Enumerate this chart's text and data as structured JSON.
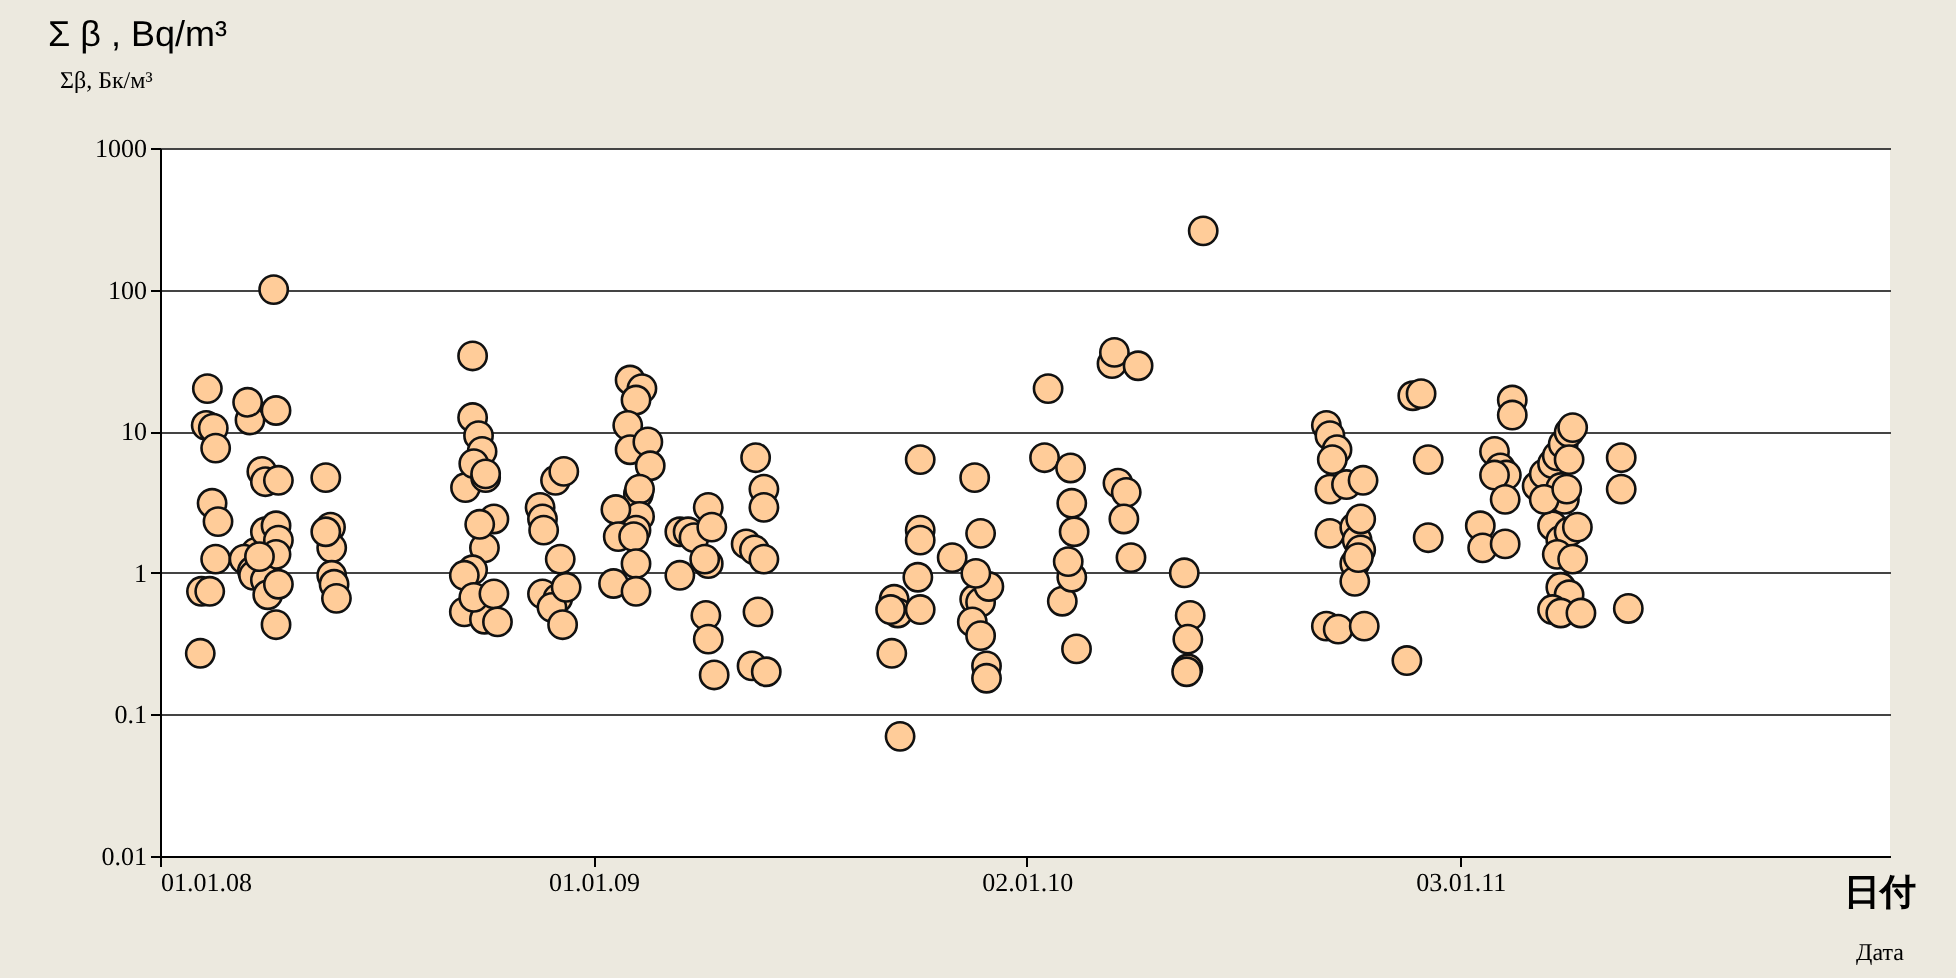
{
  "chart_data": {
    "type": "scatter",
    "ylabel": "Σ β , Bq/m³",
    "xlabel": "日付",
    "annotations": [
      "Σβ, Бк/м³",
      "Дата"
    ],
    "log": "y",
    "grid": "y",
    "marker": "circle",
    "ylim": [
      0.01,
      1000
    ],
    "yticks": [
      0.01,
      0.1,
      1,
      10,
      100,
      1000
    ],
    "xlim": [
      "2008-01-01",
      "2012-01-01"
    ],
    "xticks": [
      {
        "value": "2008-01-01",
        "label": "01.01.08"
      },
      {
        "value": "2009-01-01",
        "label": "01.01.09"
      },
      {
        "value": "2010-01-02",
        "label": "02.01.10"
      },
      {
        "value": "2011-01-03",
        "label": "03.01.11"
      }
    ],
    "series": [
      {
        "color": "#ffcc99",
        "x": [
          "2008-02-04",
          "2008-02-05",
          "2008-02-12",
          "2008-02-09",
          "2008-02-15",
          "2008-02-10",
          "2008-02-17",
          "2008-02-14",
          "2008-02-19",
          "2008-02-17",
          "2008-03-17",
          "2008-03-15",
          "2008-04-08",
          "2008-04-06",
          "2008-03-27",
          "2008-03-30",
          "2008-04-10",
          "2008-03-22",
          "2008-03-12",
          "2008-03-19",
          "2008-03-20",
          "2008-03-30",
          "2008-04-08",
          "2008-04-10",
          "2008-04-08",
          "2008-03-30",
          "2008-04-01",
          "2008-04-10",
          "2008-04-08",
          "2008-03-25",
          "2008-05-20",
          "2008-05-24",
          "2008-05-25",
          "2008-05-25",
          "2008-05-27",
          "2008-05-29",
          "2008-05-20",
          "2008-09-21",
          "2008-09-21",
          "2008-09-26",
          "2008-09-29",
          "2008-09-15",
          "2008-09-22",
          "2008-10-02",
          "2008-10-01",
          "2008-09-21",
          "2008-09-14",
          "2008-09-14",
          "2008-10-01",
          "2008-09-22",
          "2008-10-09",
          "2008-10-02",
          "2008-10-09",
          "2008-10-12",
          "2008-09-27",
          "2008-11-17",
          "2008-11-19",
          "2008-11-20",
          "2008-11-30",
          "2008-12-07",
          "2008-11-19",
          "2008-12-02",
          "2008-11-27",
          "2008-12-06",
          "2008-12-09",
          "2008-12-04",
          "2009-02-01",
          "2009-02-11",
          "2009-02-06",
          "2009-01-30",
          "2009-02-01",
          "2009-02-16",
          "2009-02-18",
          "2009-02-08",
          "2009-02-09",
          "2009-02-09",
          "2009-02-06",
          "2009-01-20",
          "2009-01-22",
          "2009-02-04",
          "2009-02-06",
          "2009-01-18",
          "2009-02-06",
          "2009-03-15",
          "2009-03-22",
          "2009-03-27",
          "2009-04-08",
          "2009-04-11",
          "2009-04-08",
          "2009-03-15",
          "2009-04-05",
          "2009-04-06",
          "2009-04-08",
          "2009-04-13",
          "2009-05-18",
          "2009-05-25",
          "2009-05-25",
          "2009-05-10",
          "2009-05-17",
          "2009-05-25",
          "2009-05-20",
          "2009-05-15",
          "2009-05-27",
          "2009-09-10",
          "2009-09-12",
          "2009-09-15",
          "2009-09-09",
          "2009-09-17",
          "2009-10-04",
          "2009-10-04",
          "2009-10-04",
          "2009-10-02",
          "2009-10-04",
          "2009-10-31",
          "2009-11-19",
          "2009-11-24",
          "2009-11-19",
          "2009-11-24",
          "2009-11-17",
          "2009-11-24",
          "2009-11-29",
          "2009-11-29",
          "2009-12-01",
          "2009-11-20",
          "2010-01-17",
          "2010-01-20",
          "2010-02-08",
          "2010-02-09",
          "2010-02-11",
          "2010-02-01",
          "2010-02-09",
          "2010-02-13",
          "2010-02-06",
          "2010-03-15",
          "2010-03-17",
          "2010-04-06",
          "2010-03-20",
          "2010-03-27",
          "2010-03-25",
          "2010-03-31",
          "2010-05-31",
          "2010-05-15",
          "2010-05-20",
          "2010-05-18",
          "2010-05-18",
          "2010-05-17",
          "2010-09-12",
          "2010-09-15",
          "2010-09-21",
          "2010-09-17",
          "2010-09-15",
          "2010-09-29",
          "2010-09-15",
          "2010-10-06",
          "2010-10-08",
          "2010-10-11",
          "2010-10-06",
          "2010-10-06",
          "2010-09-12",
          "2010-09-22",
          "2010-10-14",
          "2010-10-13",
          "2010-10-09",
          "2010-10-11",
          "2010-11-24",
          "2010-12-01",
          "2010-12-07",
          "2010-12-07",
          "2010-11-19",
          "2011-01-20",
          "2011-01-22",
          "2011-02-01",
          "2011-02-06",
          "2011-02-11",
          "2011-02-01",
          "2011-02-10",
          "2011-02-10",
          "2011-02-16",
          "2011-02-16",
          "2011-03-09",
          "2011-03-15",
          "2011-03-22",
          "2011-03-26",
          "2011-03-31",
          "2011-04-05",
          "2011-04-08",
          "2011-04-05",
          "2011-03-29",
          "2011-04-01",
          "2011-03-22",
          "2011-03-29",
          "2011-04-05",
          "2011-03-26",
          "2011-04-12",
          "2011-04-08",
          "2011-03-29",
          "2011-04-05",
          "2011-03-22",
          "2011-03-29",
          "2011-04-15",
          "2011-03-15",
          "2011-04-03",
          "2011-05-19",
          "2011-05-19",
          "2011-05-25"
        ],
        "values": [
          0.27,
          0.74,
          0.74,
          11,
          10.5,
          20,
          7.6,
          3.1,
          2.3,
          1.25,
          12,
          16,
          14,
          100,
          5.2,
          4.4,
          4.5,
          1.4,
          1.25,
          1.03,
          0.96,
          1.95,
          2.15,
          1.7,
          1.35,
          0.89,
          0.7,
          0.83,
          0.43,
          1.3,
          4.7,
          2.1,
          1.5,
          0.96,
          0.83,
          0.66,
          1.95,
          34,
          12.5,
          9.3,
          7.2,
          4,
          5.9,
          4.7,
          1.5,
          1.05,
          0.96,
          0.53,
          0.47,
          0.67,
          2.4,
          5,
          0.71,
          0.45,
          2.2,
          2.9,
          2.4,
          2,
          4.5,
          5.2,
          0.71,
          0.66,
          0.57,
          0.43,
          0.79,
          1.25,
          23,
          20,
          16.6,
          11,
          7.4,
          8.4,
          5.7,
          3.6,
          3.9,
          2.5,
          2,
          2.8,
          1.8,
          1.8,
          1.16,
          0.84,
          0.74,
          1.95,
          1.95,
          1.77,
          2.9,
          2.1,
          1.16,
          0.96,
          1.25,
          0.5,
          0.34,
          0.19,
          6.5,
          3.9,
          2.9,
          1.6,
          1.45,
          1.25,
          0.53,
          0.22,
          0.2,
          0.27,
          0.65,
          0.52,
          0.55,
          0.07,
          6.3,
          2,
          1.7,
          0.93,
          0.55,
          1.28,
          4.7,
          1.9,
          0.65,
          0.62,
          0.45,
          0.36,
          0.22,
          0.18,
          0.8,
          0.99,
          6.5,
          20,
          5.5,
          3.1,
          1.95,
          0.63,
          0.93,
          0.29,
          1.2,
          30,
          36,
          29,
          4.3,
          3.7,
          2.4,
          1.28,
          260,
          1,
          0.5,
          0.34,
          0.21,
          0.2,
          11,
          9.3,
          7.4,
          6.3,
          3.9,
          4.2,
          1.9,
          2.1,
          1.7,
          1.45,
          1.16,
          0.87,
          0.42,
          0.4,
          0.42,
          4.5,
          1.28,
          2.4,
          17.8,
          18.4,
          6.3,
          1.77,
          0.24,
          2.15,
          1.5,
          7.2,
          5.5,
          4.9,
          4.9,
          3.3,
          1.6,
          16.6,
          13,
          4.1,
          5,
          5.9,
          6.7,
          8.1,
          9.8,
          10.6,
          6.3,
          4,
          3.3,
          2.15,
          1.7,
          1.95,
          1.35,
          2.1,
          1.25,
          0.79,
          0.7,
          0.55,
          0.52,
          0.52,
          3.3,
          3.9,
          6.5,
          3.9,
          0.56
        ]
      }
    ]
  }
}
